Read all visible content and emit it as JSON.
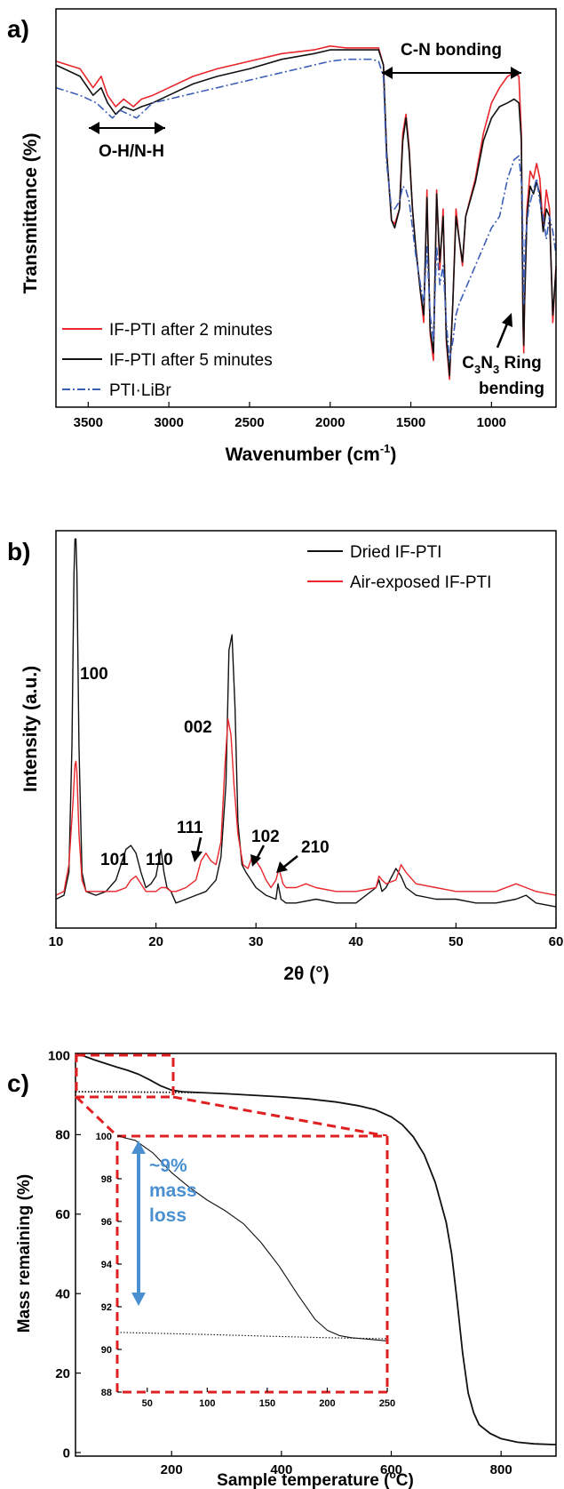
{
  "chart_data": [
    {
      "panel": "a)",
      "type": "line",
      "title": "",
      "xlabel": "Wavenumber (cm",
      "xlabel_sup": "-1",
      "xlabel_end": ")",
      "ylabel": "Transmittance (%)",
      "x_reversed": true,
      "xlim": [
        3700,
        600
      ],
      "ylim": [
        0,
        100
      ],
      "y_ticks_shown": false,
      "x_ticks": [
        "3500",
        "3000",
        "2500",
        "2000",
        "1500",
        "1000"
      ],
      "x_tick_values": [
        3500,
        3000,
        2500,
        2000,
        1500,
        1000
      ],
      "legend_position": "bottom-left",
      "series": [
        {
          "name": "IF-PTI after 2 minutes",
          "color": "#e8262b",
          "dash": "solid",
          "x": [
            3700,
            3550,
            3470,
            3420,
            3380,
            3330,
            3280,
            3220,
            3170,
            3100,
            3000,
            2850,
            2700,
            2500,
            2300,
            2100,
            2000,
            1900,
            1800,
            1740,
            1700,
            1670,
            1650,
            1620,
            1600,
            1570,
            1550,
            1530,
            1510,
            1490,
            1470,
            1440,
            1420,
            1400,
            1380,
            1360,
            1340,
            1320,
            1300,
            1280,
            1260,
            1240,
            1220,
            1200,
            1180,
            1160,
            1100,
            1050,
            1000,
            950,
            900,
            860,
            830,
            815,
            805,
            800,
            795,
            780,
            760,
            740,
            720,
            700,
            680,
            660,
            640,
            620,
            600
          ],
          "y": [
            89,
            87,
            82,
            85,
            80,
            77,
            79,
            77,
            79,
            80,
            82,
            85,
            87,
            89,
            91,
            92,
            93,
            92.5,
            92.5,
            92.5,
            92.5,
            88,
            65,
            47,
            46,
            50,
            70,
            75,
            66,
            50,
            40,
            28,
            20,
            55,
            17,
            10,
            55,
            34,
            50,
            15,
            5,
            25,
            50,
            42,
            35,
            48,
            58,
            70,
            78,
            82,
            85,
            86,
            85,
            70,
            20,
            12,
            25,
            50,
            60,
            58,
            62,
            58,
            45,
            55,
            50,
            20,
            35
          ]
        },
        {
          "name": "IF-PTI after 5 minutes",
          "color": "#111111",
          "dash": "solid",
          "x": [
            3700,
            3550,
            3470,
            3420,
            3380,
            3330,
            3280,
            3220,
            3170,
            3100,
            3000,
            2850,
            2700,
            2500,
            2300,
            2100,
            2000,
            1900,
            1800,
            1740,
            1700,
            1670,
            1650,
            1620,
            1600,
            1570,
            1550,
            1530,
            1510,
            1490,
            1470,
            1440,
            1420,
            1400,
            1380,
            1360,
            1340,
            1320,
            1300,
            1280,
            1260,
            1240,
            1220,
            1200,
            1180,
            1160,
            1100,
            1050,
            1000,
            950,
            900,
            860,
            830,
            815,
            805,
            800,
            795,
            780,
            760,
            740,
            720,
            700,
            680,
            660,
            640,
            620,
            600
          ],
          "y": [
            88,
            85,
            80,
            82,
            78,
            75,
            77,
            76,
            77,
            78,
            80,
            83,
            85,
            87,
            89.5,
            91,
            92,
            92,
            92,
            92,
            92,
            88,
            65,
            47,
            45,
            50,
            68,
            74,
            65,
            50,
            40,
            28,
            22,
            53,
            18,
            12,
            54,
            36,
            48,
            16,
            6,
            25,
            48,
            42,
            36,
            48,
            57,
            68,
            74,
            77,
            78,
            79,
            78,
            68,
            22,
            14,
            25,
            48,
            56,
            54,
            57,
            54,
            44,
            50,
            48,
            22,
            34
          ]
        },
        {
          "name": "PTI·LiBr",
          "color": "#3b5fb8",
          "dash": "dash-dot",
          "x": [
            3700,
            3550,
            3450,
            3350,
            3300,
            3200,
            3100,
            3000,
            2800,
            2600,
            2400,
            2200,
            2000,
            1900,
            1800,
            1740,
            1700,
            1670,
            1650,
            1620,
            1600,
            1570,
            1550,
            1530,
            1510,
            1490,
            1470,
            1440,
            1420,
            1400,
            1380,
            1360,
            1340,
            1320,
            1300,
            1280,
            1260,
            1240,
            1220,
            1200,
            1150,
            1100,
            1050,
            1000,
            950,
            900,
            860,
            830,
            810,
            800,
            790,
            770,
            740,
            720,
            700,
            680,
            660,
            640,
            620,
            600
          ],
          "y": [
            82,
            80,
            78,
            74,
            76,
            74,
            78,
            79,
            81,
            83,
            85,
            87,
            89,
            89.5,
            89.5,
            89.5,
            89,
            85,
            62,
            50,
            50,
            52,
            56,
            55,
            52,
            45,
            38,
            30,
            25,
            40,
            22,
            15,
            40,
            30,
            35,
            20,
            10,
            15,
            22,
            25,
            30,
            35,
            40,
            45,
            48,
            58,
            63,
            64,
            55,
            25,
            42,
            50,
            55,
            58,
            52,
            48,
            42,
            48,
            44,
            38
          ]
        }
      ],
      "annotations": [
        {
          "label": "C-N bonding",
          "arrow": "double"
        },
        {
          "label": "O-H/N-H",
          "arrow": "double"
        },
        {
          "label_main": "C",
          "sub1": "3",
          "label_mid": "N",
          "sub2": "3",
          "label_tail": " Ring",
          "label_line2": "bending",
          "arrow": "single"
        }
      ]
    },
    {
      "panel": "b)",
      "type": "line",
      "title": "",
      "xlabel": "2θ (°)",
      "ylabel": "Intensity (a.u.)",
      "xlim": [
        10,
        60
      ],
      "ylim": [
        0,
        100
      ],
      "y_ticks_shown": false,
      "x_ticks": [
        "10",
        "20",
        "30",
        "40",
        "50",
        "60"
      ],
      "x_tick_values": [
        10,
        20,
        30,
        40,
        50,
        60
      ],
      "legend_position": "top-right",
      "series": [
        {
          "name": "Dried IF-PTI",
          "color": "#111111",
          "dash": "solid",
          "x": [
            10,
            10.8,
            11.3,
            11.6,
            11.8,
            11.9,
            12.0,
            12.1,
            12.3,
            12.6,
            13.0,
            14,
            15,
            16,
            17,
            17.5,
            18,
            18.5,
            19,
            19.5,
            20,
            20.5,
            20.8,
            21.1,
            21.5,
            22,
            23,
            24,
            25,
            26,
            26.5,
            27,
            27.3,
            27.6,
            27.9,
            28.2,
            28.6,
            29,
            30,
            31,
            32,
            32.2,
            32.5,
            33,
            34,
            36,
            38,
            40,
            42,
            42.3,
            42.6,
            43,
            44,
            44.5,
            45,
            46,
            48,
            50,
            52,
            54,
            56,
            57,
            58,
            60
          ],
          "y": [
            5,
            6,
            12,
            45,
            90,
            99,
            99,
            90,
            45,
            12,
            7,
            6,
            7,
            10,
            18,
            19,
            17,
            12,
            8,
            9,
            11,
            18,
            12,
            8,
            7,
            4,
            5,
            6,
            7,
            10,
            16,
            35,
            70,
            74,
            55,
            25,
            14,
            12,
            8,
            6,
            5,
            9,
            5,
            4,
            4,
            5,
            4,
            4,
            8,
            10,
            7,
            8,
            13,
            11,
            8,
            6,
            5,
            5,
            4,
            4,
            5,
            6,
            4,
            3
          ]
        },
        {
          "name": "Air-exposed IF-PTI",
          "color": "#e8262b",
          "dash": "solid",
          "x": [
            10,
            10.8,
            11.3,
            11.7,
            11.9,
            12.0,
            12.1,
            12.3,
            12.6,
            13.0,
            14,
            15,
            16,
            17,
            17.5,
            18,
            18.5,
            19,
            20,
            20.5,
            21,
            21.5,
            22,
            23,
            24,
            24.5,
            25,
            25.5,
            26,
            26.5,
            26.9,
            27.2,
            27.5,
            27.8,
            28.2,
            28.7,
            29.2,
            29.6,
            30,
            30.5,
            31,
            31.5,
            32,
            32.3,
            32.7,
            33,
            34,
            35,
            36,
            38,
            40,
            42,
            42.3,
            42.6,
            43,
            44,
            44.5,
            45,
            46,
            48,
            50,
            52,
            54,
            56,
            57,
            58,
            60
          ],
          "y": [
            6,
            7,
            14,
            30,
            40,
            41,
            38,
            22,
            10,
            7,
            7,
            7,
            7,
            8,
            10,
            11,
            9,
            7,
            7,
            8,
            8,
            7,
            7,
            8,
            10,
            15,
            17,
            15,
            14,
            20,
            40,
            52,
            48,
            35,
            22,
            14,
            13,
            16,
            15,
            13,
            10,
            8,
            10,
            13,
            9,
            8,
            8,
            9,
            8,
            7,
            7,
            8,
            11,
            10,
            9,
            10,
            14,
            12,
            9,
            8,
            7,
            7,
            7,
            9,
            8,
            7,
            6
          ]
        }
      ],
      "peak_labels": [
        "100",
        "101",
        "110",
        "111",
        "002",
        "102",
        "210"
      ]
    },
    {
      "panel": "c)",
      "type": "line",
      "title": "",
      "xlabel": "Sample temperature (",
      "xlabel_sup": "o",
      "xlabel_end": "C)",
      "ylabel": "Mass remaining (%)",
      "xlim": [
        25,
        900
      ],
      "ylim": [
        0,
        100
      ],
      "x_ticks": [
        "200",
        "400",
        "600",
        "800"
      ],
      "x_tick_values": [
        200,
        400,
        600,
        800
      ],
      "y_ticks": [
        "0",
        "20",
        "40",
        "60",
        "80",
        "100"
      ],
      "y_tick_values": [
        0,
        20,
        40,
        60,
        80,
        100
      ],
      "series": [
        {
          "name": "",
          "color": "#111111",
          "dash": "solid",
          "x": [
            25,
            40,
            60,
            80,
            100,
            120,
            140,
            160,
            180,
            200,
            220,
            250,
            300,
            350,
            400,
            450,
            500,
            540,
            570,
            600,
            620,
            640,
            660,
            680,
            700,
            710,
            720,
            730,
            740,
            750,
            760,
            780,
            800,
            830,
            860,
            900
          ],
          "y": [
            100,
            99.8,
            98.8,
            97.9,
            97.0,
            96.2,
            95.2,
            93.8,
            92.3,
            91.2,
            90.8,
            90.6,
            90.3,
            89.9,
            89.5,
            89.0,
            88.2,
            87.3,
            86.3,
            84.5,
            82.5,
            79.5,
            75.0,
            68.0,
            58.0,
            50.0,
            38.0,
            25.0,
            15.0,
            10.0,
            7.0,
            4.8,
            3.5,
            2.6,
            2.2,
            2.0
          ]
        },
        {
          "name": "",
          "color": "#111111",
          "dash": "dotted",
          "x": [
            25,
            100,
            200,
            250
          ],
          "y": [
            90.8,
            90.75,
            90.65,
            90.6
          ]
        }
      ],
      "inset": {
        "xlim": [
          25,
          250
        ],
        "ylim": [
          88,
          100
        ],
        "x_ticks": [
          "50",
          "100",
          "150",
          "200",
          "250"
        ],
        "x_tick_values": [
          50,
          100,
          150,
          200,
          250
        ],
        "y_ticks": [
          "88",
          "90",
          "92",
          "94",
          "96",
          "98",
          "100"
        ],
        "y_tick_values": [
          88,
          90,
          92,
          94,
          96,
          98,
          100
        ],
        "annotation_lines": [
          "~9%",
          "mass",
          "loss"
        ],
        "annotation_color": "#4a90d0",
        "highlight_color": "#e02020",
        "series": [
          {
            "dash": "solid",
            "x": [
              25,
              40,
              55,
              70,
              85,
              100,
              115,
              130,
              145,
              160,
              175,
              190,
              200,
              210,
              220,
              230,
              240,
              250
            ],
            "y": [
              100,
              99.8,
              99.2,
              98.3,
              97.6,
              97.0,
              96.5,
              95.9,
              95.0,
              93.9,
              92.6,
              91.4,
              90.9,
              90.65,
              90.55,
              90.5,
              90.45,
              90.4
            ]
          },
          {
            "dash": "dotted",
            "x": [
              25,
              100,
              150,
              200,
              250
            ],
            "y": [
              90.8,
              90.7,
              90.62,
              90.55,
              90.5
            ]
          }
        ]
      }
    }
  ]
}
